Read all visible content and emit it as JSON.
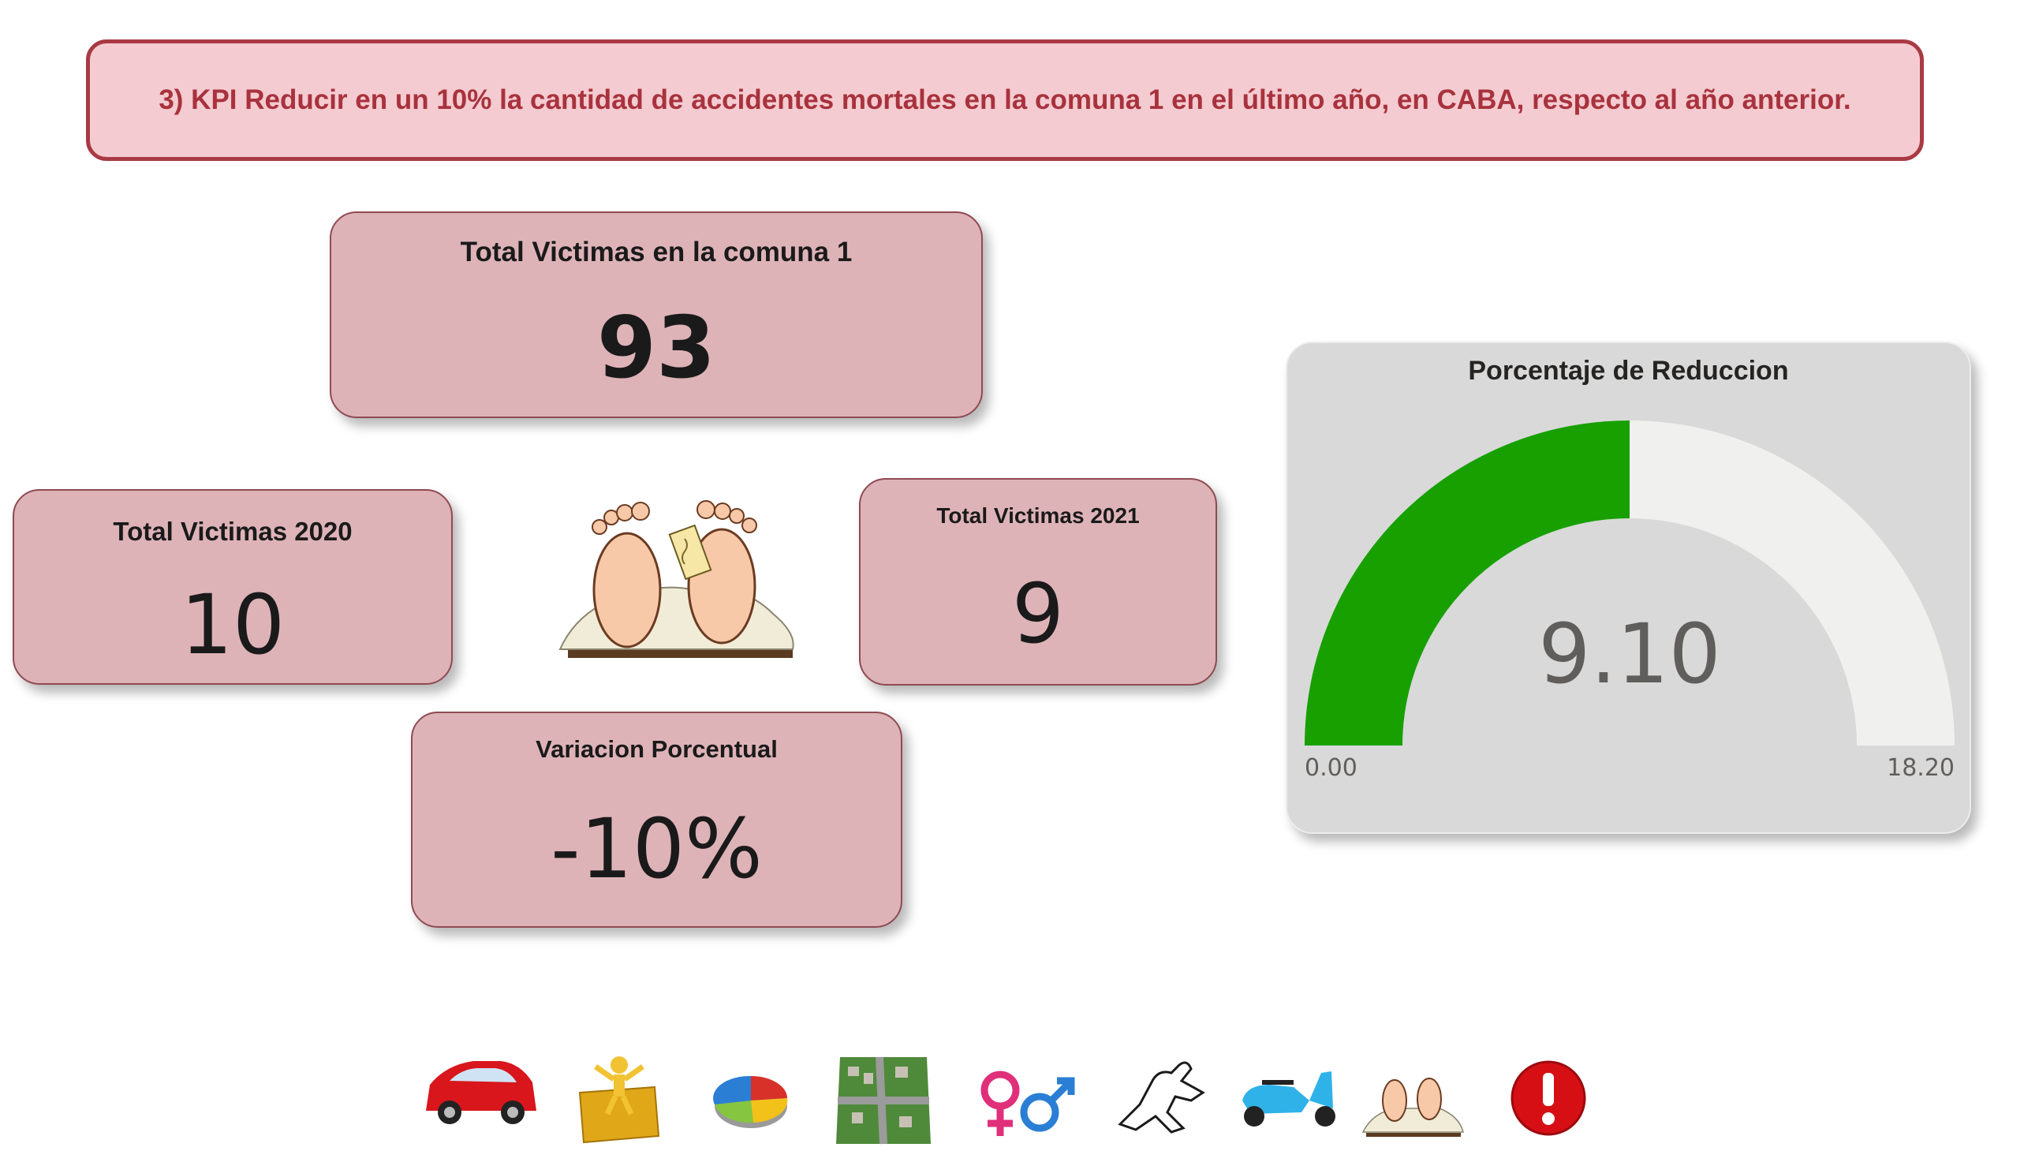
{
  "banner": {
    "text": "3) KPI Reducir en un 10% la cantidad de accidentes mortales en la comuna 1 en el último año, en CABA, respecto al año anterior."
  },
  "cards": {
    "comuna": {
      "label": "Total Victimas en la comuna 1",
      "value": "93"
    },
    "y2020": {
      "label": "Total Victimas 2020",
      "value": "10"
    },
    "y2021": {
      "label": "Total Victimas 2021",
      "value": "9"
    },
    "variacion": {
      "label": "Variacion Porcentual",
      "value": "-10%"
    }
  },
  "gauge": {
    "title": "Porcentaje de Reduccion",
    "value": 9.1,
    "value_label": "9.10",
    "min": 0,
    "max": 18.2,
    "min_label": "0.00",
    "max_label": "18.20",
    "fill_color": "#17a000",
    "track_color": "#f0f0ef"
  },
  "colors": {
    "banner_bg": "#f4cbd0",
    "banner_border": "#a83a44",
    "card_bg": "#deb3b8",
    "gauge_bg": "#d9d9d9"
  },
  "nav_icons": [
    "car-icon",
    "puzzle-person-icon",
    "pie-chart-icon",
    "city-map-icon",
    "gender-icon",
    "chalk-outline-icon",
    "scooter-icon",
    "feet-tag-icon",
    "alert-icon"
  ]
}
